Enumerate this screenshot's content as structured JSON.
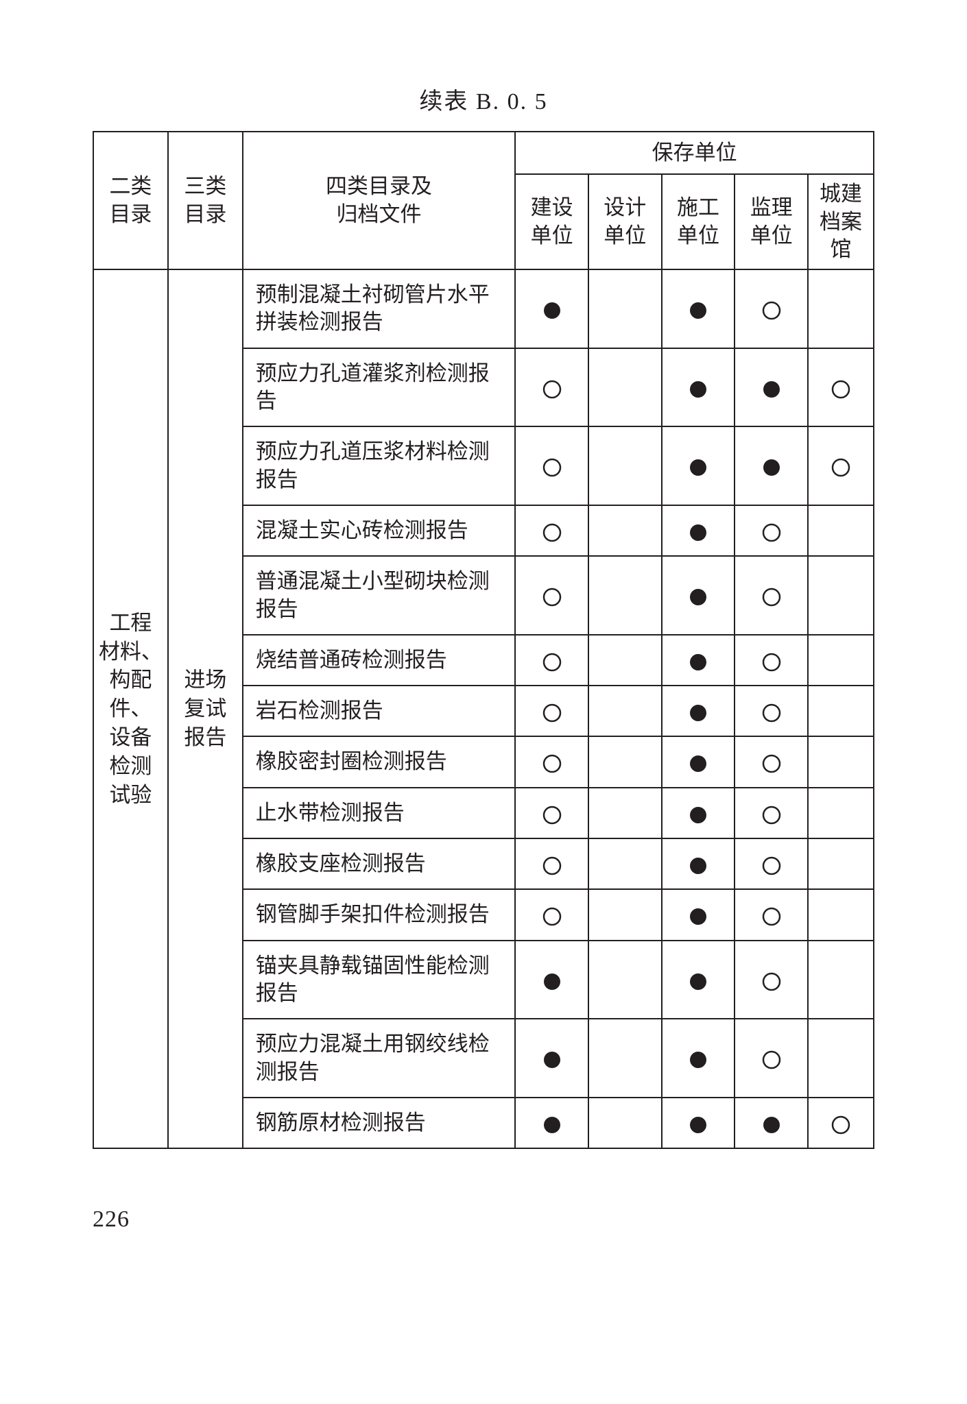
{
  "title": "续表 B. 0. 5",
  "page_number": "226",
  "marks": {
    "filled_color": "#231f20",
    "hollow_stroke": "#231f20",
    "hollow_fill": "#ffffff",
    "circle_r": 12,
    "stroke_w": 2.5
  },
  "table": {
    "border_color": "#231f20",
    "header": {
      "cat2": "二类\n目录",
      "cat3": "三类\n目录",
      "file": "四类目录及\n归档文件",
      "group": "保存单位",
      "units": [
        "建设\n单位",
        "设计\n单位",
        "施工\n单位",
        "监理\n单位",
        "城建\n档案\n馆"
      ]
    },
    "rowspans": {
      "cat2_text": "工程\n材料、\n构配\n件、\n设备\n检测\n试验",
      "cat3_text": "进场\n复试\n报告"
    },
    "rows": [
      {
        "file": "预制混凝土衬砌管片水平拼装检测报告",
        "marks": [
          "filled",
          "",
          "filled",
          "hollow",
          ""
        ]
      },
      {
        "file": "预应力孔道灌浆剂检测报告",
        "marks": [
          "hollow",
          "",
          "filled",
          "filled",
          "hollow"
        ]
      },
      {
        "file": "预应力孔道压浆材料检测报告",
        "marks": [
          "hollow",
          "",
          "filled",
          "filled",
          "hollow"
        ]
      },
      {
        "file": "混凝土实心砖检测报告",
        "marks": [
          "hollow",
          "",
          "filled",
          "hollow",
          ""
        ]
      },
      {
        "file": "普通混凝土小型砌块检测报告",
        "marks": [
          "hollow",
          "",
          "filled",
          "hollow",
          ""
        ]
      },
      {
        "file": "烧结普通砖检测报告",
        "marks": [
          "hollow",
          "",
          "filled",
          "hollow",
          ""
        ]
      },
      {
        "file": "岩石检测报告",
        "marks": [
          "hollow",
          "",
          "filled",
          "hollow",
          ""
        ]
      },
      {
        "file": "橡胶密封圈检测报告",
        "marks": [
          "hollow",
          "",
          "filled",
          "hollow",
          ""
        ]
      },
      {
        "file": "止水带检测报告",
        "marks": [
          "hollow",
          "",
          "filled",
          "hollow",
          ""
        ]
      },
      {
        "file": "橡胶支座检测报告",
        "marks": [
          "hollow",
          "",
          "filled",
          "hollow",
          ""
        ]
      },
      {
        "file": "钢管脚手架扣件检测报告",
        "marks": [
          "hollow",
          "",
          "filled",
          "hollow",
          ""
        ]
      },
      {
        "file": "锚夹具静载锚固性能检测报告",
        "marks": [
          "filled",
          "",
          "filled",
          "hollow",
          ""
        ]
      },
      {
        "file": "预应力混凝土用钢绞线检测报告",
        "marks": [
          "filled",
          "",
          "filled",
          "hollow",
          ""
        ]
      },
      {
        "file": "钢筋原材检测报告",
        "marks": [
          "filled",
          "",
          "filled",
          "filled",
          "hollow"
        ]
      }
    ]
  }
}
